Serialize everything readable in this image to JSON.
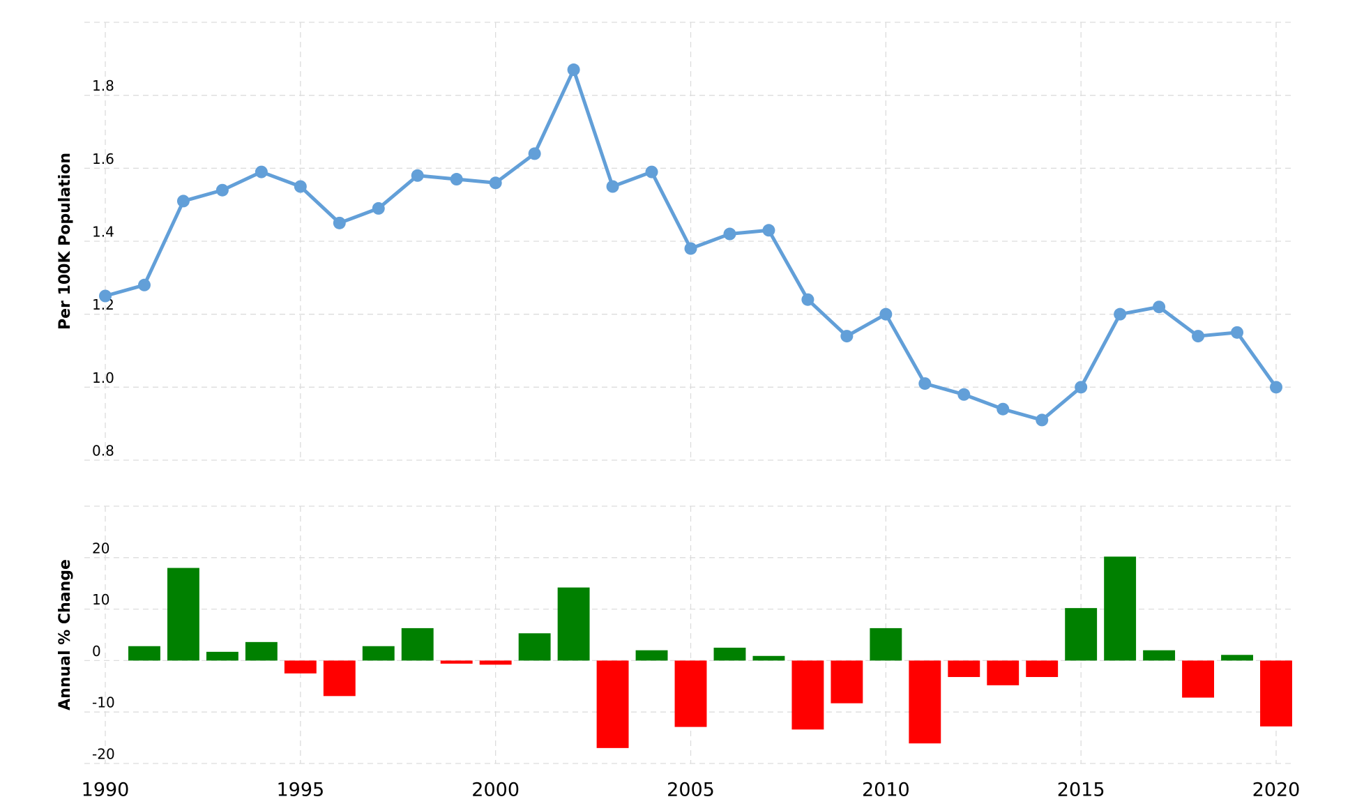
{
  "chart_data": [
    {
      "type": "line",
      "y_label": "Per 100K Population",
      "x": [
        1990,
        1991,
        1992,
        1993,
        1994,
        1995,
        1996,
        1997,
        1998,
        1999,
        2000,
        2001,
        2002,
        2003,
        2004,
        2005,
        2006,
        2007,
        2008,
        2009,
        2010,
        2011,
        2012,
        2013,
        2014,
        2015,
        2016,
        2017,
        2018,
        2019,
        2020
      ],
      "values": [
        1.25,
        1.28,
        1.51,
        1.54,
        1.59,
        1.55,
        1.45,
        1.49,
        1.58,
        1.57,
        1.56,
        1.64,
        1.87,
        1.55,
        1.59,
        1.38,
        1.42,
        1.43,
        1.24,
        1.14,
        1.2,
        1.01,
        0.98,
        0.94,
        0.91,
        1.0,
        1.2,
        1.22,
        1.14,
        1.15,
        1.0
      ],
      "color": "#629fd8",
      "xlim": [
        1990,
        2020
      ],
      "ylim": [
        0.8,
        2.0
      ],
      "yticks": [
        0.8,
        {
          "value": 1.0,
          "label": "1.0"
        },
        1.2,
        1.4,
        1.6,
        1.8
      ],
      "grid": true
    },
    {
      "type": "bar",
      "y_label": "Annual % Change",
      "x": [
        1991,
        1992,
        1993,
        1994,
        1995,
        1996,
        1997,
        1998,
        1999,
        2000,
        2001,
        2002,
        2003,
        2004,
        2005,
        2006,
        2007,
        2008,
        2009,
        2010,
        2011,
        2012,
        2013,
        2014,
        2015,
        2016,
        2017,
        2018,
        2019,
        2020
      ],
      "values": [
        2.8,
        18.0,
        1.7,
        3.6,
        -2.5,
        -6.9,
        2.8,
        6.3,
        -0.6,
        -0.8,
        5.3,
        14.2,
        -17.0,
        2.0,
        -12.9,
        2.5,
        0.9,
        -13.4,
        -8.3,
        6.3,
        -16.1,
        -3.2,
        -4.8,
        -3.2,
        10.2,
        20.2,
        2.0,
        -7.2,
        1.1,
        -12.8
      ],
      "positive_color": "#008000",
      "negative_color": "#ff0000",
      "xlim": [
        1990,
        2020
      ],
      "xticks": [
        1990,
        1995,
        2000,
        2005,
        2010,
        2015,
        2020
      ],
      "ylim": [
        -20,
        30
      ],
      "yticks": [
        -20,
        -10,
        0,
        10,
        20
      ],
      "grid": true
    }
  ]
}
